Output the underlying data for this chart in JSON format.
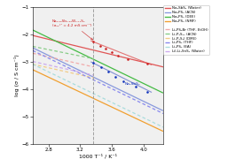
{
  "xlabel": "1000 T⁻¹ / K⁻¹",
  "ylabel": "log (σ / S cm⁻¹)",
  "xlim": [
    2.6,
    4.25
  ],
  "ylim": [
    -6,
    -1
  ],
  "vline_x": 3.37,
  "annotation_text": "Na₂.₈₈Sb₀.₈₈W₀.₁₂S₄\n(σ₂₅°ᶜ = 4.2 mS cm⁻¹)",
  "annotation_na3sbs4": "Na₃SbS₄",
  "solid_lines": [
    {
      "label": "Na₃SbS₄ (Water)",
      "color": "#e05555",
      "x": [
        2.6,
        4.25
      ],
      "y": [
        -2.05,
        -3.2
      ]
    },
    {
      "label": "Na₃PS₄ (ACN)",
      "color": "#8899dd",
      "x": [
        2.6,
        4.25
      ],
      "y": [
        -2.5,
        -4.8
      ]
    },
    {
      "label": "Na₃PS₄ (DEE)",
      "color": "#44bb44",
      "x": [
        2.6,
        4.25
      ],
      "y": [
        -1.85,
        -4.15
      ]
    },
    {
      "label": "Na₃PS₄ (NMF)",
      "color": "#f0a030",
      "x": [
        2.6,
        4.25
      ],
      "y": [
        -3.3,
        -5.55
      ]
    }
  ],
  "dashed_lines": [
    {
      "label": "Li₆PS₅Br (THF, EtOH)",
      "color": "#f0aaaa",
      "x": [
        2.6,
        3.37
      ],
      "y": [
        -2.7,
        -3.2
      ]
    },
    {
      "label": "Li₇P₃S₁₁ (ACN)",
      "color": "#88cc88",
      "x": [
        2.6,
        3.37
      ],
      "y": [
        -2.45,
        -2.9
      ]
    },
    {
      "label": "Li₇P₂S₈I (DME)",
      "color": "#f0cc88",
      "x": [
        2.6,
        3.37
      ],
      "y": [
        -3.1,
        -3.6
      ]
    },
    {
      "label": "Li₃PS₄ (THF)",
      "color": "#8888ee",
      "x": [
        2.6,
        4.25
      ],
      "y": [
        -2.6,
        -4.9
      ]
    },
    {
      "label": "Li₃PS₄ (EA)",
      "color": "#aadddd",
      "x": [
        2.6,
        4.25
      ],
      "y": [
        -3.1,
        -5.4
      ]
    },
    {
      "label": "LiI-Li₄SnS₄ (Water)",
      "color": "#ccaaee",
      "x": [
        2.6,
        3.37
      ],
      "y": [
        -3.0,
        -3.5
      ]
    }
  ],
  "red_dots": [
    [
      3.37,
      -2.28
    ],
    [
      3.46,
      -2.42
    ],
    [
      3.52,
      -2.52
    ],
    [
      3.6,
      -2.65
    ],
    [
      3.68,
      -2.78
    ],
    [
      3.8,
      -2.92
    ],
    [
      4.05,
      -3.08
    ]
  ],
  "blue_dots": [
    [
      3.37,
      -3.05
    ],
    [
      3.47,
      -3.2
    ],
    [
      3.56,
      -3.38
    ],
    [
      3.65,
      -3.55
    ],
    [
      3.75,
      -3.72
    ],
    [
      3.9,
      -3.92
    ],
    [
      4.05,
      -4.1
    ]
  ],
  "red_line_fit": {
    "x": [
      3.34,
      4.1
    ],
    "y": [
      -2.25,
      -3.12
    ]
  },
  "blue_line_fit": {
    "x": [
      3.34,
      4.1
    ],
    "y": [
      -3.02,
      -4.12
    ]
  },
  "legend_solid": [
    {
      "label": "Na₃SbS₄ (Water)",
      "color": "#e05555",
      "ls": "-"
    },
    {
      "label": "Na₃PS₄ (ACN)",
      "color": "#8899dd",
      "ls": "-"
    },
    {
      "label": "Na₃PS₄ (DEE)",
      "color": "#44bb44",
      "ls": "-"
    },
    {
      "label": "Na₃PS₄ (NMF)",
      "color": "#f0a030",
      "ls": "-"
    }
  ],
  "legend_dashed": [
    {
      "label": "Li₆PS₅Br (THF, EtOH)",
      "color": "#f0aaaa",
      "ls": "--"
    },
    {
      "label": "Li₇P₃S₁₁ (ACN)",
      "color": "#88cc88",
      "ls": "--"
    },
    {
      "label": "Li₇P₂S₈I (DME)",
      "color": "#f0cc88",
      "ls": "--"
    },
    {
      "label": "Li₃PS₄ (THF)",
      "color": "#8888ee",
      "ls": "--"
    },
    {
      "label": "Li₃PS₄ (EA)",
      "color": "#aadddd",
      "ls": "--"
    },
    {
      "label": "LiI-Li₄SnS₄ (Water)",
      "color": "#ccaaee",
      "ls": "--"
    }
  ]
}
